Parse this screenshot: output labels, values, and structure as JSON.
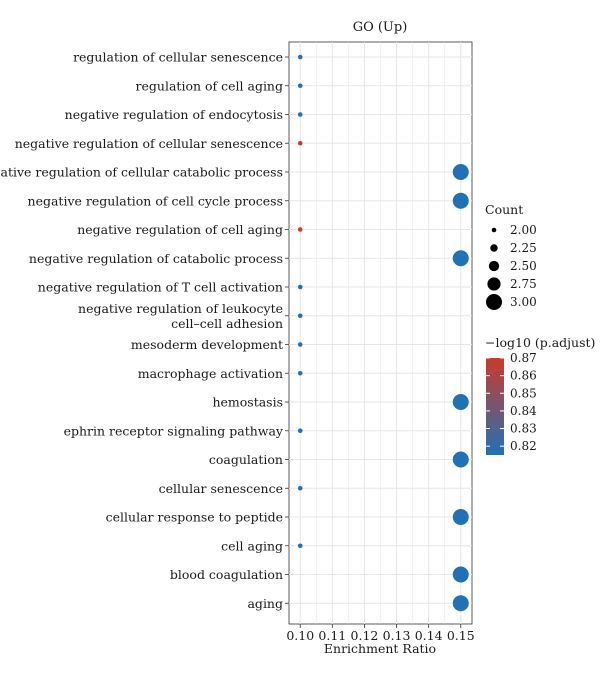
{
  "chart_data": {
    "type": "scatter",
    "title": "GO (Up)",
    "xlabel": "Enrichment Ratio",
    "ylabel": "",
    "xlim": [
      0.0965,
      0.1535
    ],
    "xticks": [
      0.1,
      0.11,
      0.12,
      0.13,
      0.14,
      0.15
    ],
    "xtick_labels": [
      "0.10",
      "0.11",
      "0.12",
      "0.13",
      "0.14",
      "0.15"
    ],
    "grid": true,
    "categories": [
      "regulation of cellular senescence",
      "regulation of cell aging",
      "negative regulation of endocytosis",
      "negative regulation of cellular senescence",
      "negative regulation of cellular catabolic process",
      "negative regulation of cell cycle process",
      "negative regulation of cell aging",
      "negative regulation of catabolic process",
      "negative regulation of T cell activation",
      "negative regulation of leukocyte cell–cell adhesion",
      "mesoderm development",
      "macrophage activation",
      "hemostasis",
      "ephrin receptor signaling pathway",
      "coagulation",
      "cellular senescence",
      "cellular response to peptide",
      "cell aging",
      "blood coagulation",
      "aging"
    ],
    "category_lines": [
      [
        "regulation of cellular senescence"
      ],
      [
        "regulation of cell aging"
      ],
      [
        "negative regulation of endocytosis"
      ],
      [
        "negative regulation of cellular senescence"
      ],
      [
        "negative regulation of cellular catabolic process"
      ],
      [
        "negative regulation of cell cycle process"
      ],
      [
        "negative regulation of cell aging"
      ],
      [
        "negative regulation of catabolic process"
      ],
      [
        "negative regulation of T cell activation"
      ],
      [
        "negative regulation of leukocyte",
        "cell–cell adhesion"
      ],
      [
        "mesoderm development"
      ],
      [
        "macrophage activation"
      ],
      [
        "hemostasis"
      ],
      [
        "ephrin receptor signaling pathway"
      ],
      [
        "coagulation"
      ],
      [
        "cellular senescence"
      ],
      [
        "cellular response to peptide"
      ],
      [
        "cell aging"
      ],
      [
        "blood coagulation"
      ],
      [
        "aging"
      ]
    ],
    "points": [
      {
        "x": 0.1,
        "count": 2,
        "neglog10_padj": 0.815
      },
      {
        "x": 0.1,
        "count": 2,
        "neglog10_padj": 0.815
      },
      {
        "x": 0.1,
        "count": 2,
        "neglog10_padj": 0.815
      },
      {
        "x": 0.1,
        "count": 2,
        "neglog10_padj": 0.87
      },
      {
        "x": 0.15,
        "count": 3,
        "neglog10_padj": 0.815
      },
      {
        "x": 0.15,
        "count": 3,
        "neglog10_padj": 0.815
      },
      {
        "x": 0.1,
        "count": 2,
        "neglog10_padj": 0.87
      },
      {
        "x": 0.15,
        "count": 3,
        "neglog10_padj": 0.815
      },
      {
        "x": 0.1,
        "count": 2,
        "neglog10_padj": 0.815
      },
      {
        "x": 0.1,
        "count": 2,
        "neglog10_padj": 0.815
      },
      {
        "x": 0.1,
        "count": 2,
        "neglog10_padj": 0.815
      },
      {
        "x": 0.1,
        "count": 2,
        "neglog10_padj": 0.815
      },
      {
        "x": 0.15,
        "count": 3,
        "neglog10_padj": 0.815
      },
      {
        "x": 0.1,
        "count": 2,
        "neglog10_padj": 0.815
      },
      {
        "x": 0.15,
        "count": 3,
        "neglog10_padj": 0.815
      },
      {
        "x": 0.1,
        "count": 2,
        "neglog10_padj": 0.815
      },
      {
        "x": 0.15,
        "count": 3,
        "neglog10_padj": 0.815
      },
      {
        "x": 0.1,
        "count": 2,
        "neglog10_padj": 0.815
      },
      {
        "x": 0.15,
        "count": 3,
        "neglog10_padj": 0.815
      },
      {
        "x": 0.15,
        "count": 3,
        "neglog10_padj": 0.815
      }
    ],
    "size_legend": {
      "title": "Count",
      "values": [
        2.0,
        2.25,
        2.5,
        2.75,
        3.0
      ],
      "labels": [
        "2.00",
        "2.25",
        "2.50",
        "2.75",
        "3.00"
      ]
    },
    "color_legend": {
      "title": "−log10 (p.adjust)",
      "range": [
        0.815,
        0.87
      ],
      "values": [
        0.87,
        0.86,
        0.85,
        0.84,
        0.83,
        0.82
      ],
      "labels": [
        "0.87",
        "0.86",
        "0.85",
        "0.84",
        "0.83",
        "0.82"
      ],
      "low_color": "#2171b5",
      "high_color": "#cb3a2a"
    }
  }
}
